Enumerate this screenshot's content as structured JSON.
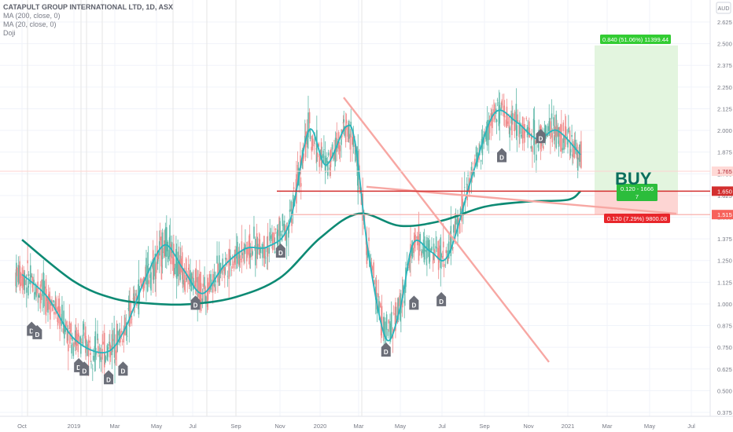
{
  "legend": {
    "symbol": "CATAPULT GROUP INTERNATIONAL LTD, 1D, ASX",
    "studies": [
      "MA (200, close, 0)",
      "MA (20, close, 0)",
      "Doji"
    ]
  },
  "currency_button": "AUD",
  "chart_data": {
    "type": "line",
    "title": "CATAPULT GROUP INTERNATIONAL LTD, 1D, ASX",
    "x": [
      "Oct 2018",
      "Jan 2019",
      "Mar 2019",
      "May 2019",
      "Jul 2019",
      "Sep 2019",
      "Nov 2019",
      "Jan 2020",
      "Mar 2020",
      "May 2020",
      "Jul 2020",
      "Sep 2020",
      "Nov 2020",
      "Jan 2021",
      "Mar 2021",
      "May 2021",
      "Jul 2021"
    ],
    "x_tick_labels": [
      "Oct",
      "2019",
      "Mar",
      "May",
      "Jul",
      "Sep",
      "Nov",
      "2020",
      "Mar",
      "May",
      "Jul",
      "Sep",
      "Nov",
      "2021",
      "Mar",
      "May",
      "Jul"
    ],
    "y_tick_labels": [
      "2.625",
      "2.500",
      "2.375",
      "2.250",
      "2.125",
      "2.000",
      "1.875",
      "1.750",
      "1.625",
      "1.500",
      "1.375",
      "1.250",
      "1.125",
      "1.000",
      "0.875",
      "0.750",
      "0.625",
      "0.500",
      "0.375"
    ],
    "ylim": [
      0.34,
      2.69
    ],
    "series": [
      {
        "name": "MA (200, close, 0)",
        "color": "#0d8a74",
        "x": [
          "2018-10-01",
          "2019-01-01",
          "2019-03-01",
          "2019-05-01",
          "2019-07-01",
          "2019-09-01",
          "2019-11-01",
          "2020-01-01",
          "2020-03-01",
          "2020-05-01",
          "2020-07-01",
          "2020-09-01",
          "2020-11-01",
          "2021-01-01",
          "2021-01-20"
        ],
        "y": [
          1.37,
          1.13,
          1.03,
          1.0,
          1.0,
          1.04,
          1.15,
          1.38,
          1.52,
          1.45,
          1.48,
          1.56,
          1.59,
          1.6,
          1.65
        ]
      },
      {
        "name": "MA (20, close, 0)",
        "color": "#26b5bd",
        "x": [
          "2018-10-01",
          "2018-11-15",
          "2019-01-01",
          "2019-02-15",
          "2019-03-15",
          "2019-04-15",
          "2019-05-15",
          "2019-06-15",
          "2019-07-15",
          "2019-08-15",
          "2019-09-15",
          "2019-10-15",
          "2019-11-15",
          "2019-12-15",
          "2020-01-10",
          "2020-02-10",
          "2020-02-25",
          "2020-03-15",
          "2020-04-10",
          "2020-05-01",
          "2020-05-20",
          "2020-06-15",
          "2020-07-10",
          "2020-08-15",
          "2020-09-15",
          "2020-10-15",
          "2020-11-15",
          "2020-12-15",
          "2021-01-20"
        ],
        "y": [
          1.17,
          1.04,
          0.8,
          0.72,
          0.85,
          1.15,
          1.34,
          1.2,
          1.06,
          1.22,
          1.32,
          1.33,
          1.46,
          2.0,
          1.8,
          2.02,
          1.92,
          1.3,
          0.8,
          0.98,
          1.35,
          1.3,
          1.28,
          1.75,
          2.1,
          2.05,
          1.95,
          2.0,
          1.86
        ]
      }
    ],
    "doji_markers": [
      "D",
      "D",
      "D",
      "D",
      "D",
      "D",
      "D",
      "D",
      "D",
      "D",
      "D",
      "D",
      "D"
    ],
    "annotations": {
      "levels": [
        {
          "price": 1.765,
          "label": "1.765",
          "color": "#ffd9d6"
        },
        {
          "price": 1.65,
          "label": "1.650",
          "color": "#d32f2f"
        },
        {
          "price": 1.515,
          "label": "1.515",
          "color": "#f7625b"
        }
      ],
      "buy_text": "BUY",
      "target_label": "0.840 (51.06%) 11399.44",
      "stop_label": "0.120 (7.29%) 9800.08",
      "position_label": "0.120 - 1666",
      "position_sub": "7"
    }
  }
}
